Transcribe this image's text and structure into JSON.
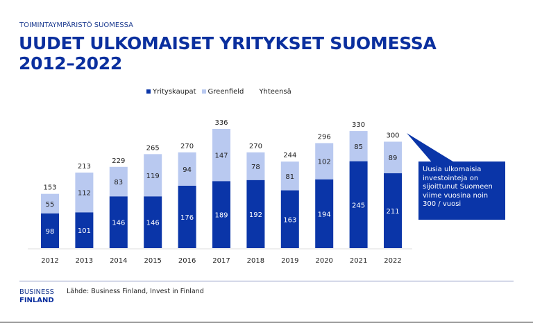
{
  "header": {
    "supertitle": "TOIMINTAYMPÄRISTÖ SUOMESSA",
    "title_line1": "UUDET ULKOMAISET YRITYKSET SUOMESSA",
    "title_line2": "2012–2022"
  },
  "colors": {
    "yrityskaupat": "#0a35a8",
    "greenfield": "#b9c9f0"
  },
  "chart_data": {
    "type": "bar",
    "stacked": true,
    "categories": [
      "2012",
      "2013",
      "2014",
      "2015",
      "2016",
      "2017",
      "2018",
      "2019",
      "2020",
      "2021",
      "2022"
    ],
    "series": [
      {
        "name": "Yrityskaupat",
        "values": [
          98,
          101,
          146,
          146,
          176,
          189,
          192,
          163,
          194,
          245,
          211
        ]
      },
      {
        "name": "Greenfield",
        "values": [
          55,
          112,
          83,
          119,
          94,
          147,
          78,
          81,
          102,
          85,
          89
        ]
      }
    ],
    "totals_name": "Yhteensä",
    "totals": [
      153,
      213,
      229,
      265,
      270,
      336,
      270,
      244,
      296,
      330,
      300
    ],
    "legend": [
      "Yrityskaupat",
      "Greenfield",
      "Yhteensä"
    ],
    "legend_position": "top",
    "grid": false,
    "ylim": [
      0,
      340
    ]
  },
  "callout": {
    "text": "Uusia ulkomaisia investointeja on sijoittunut Suomeen viime vuosina noin 300 / vuosi"
  },
  "footer": {
    "logo_line1": "BUSINESS",
    "logo_line2": "FINLAND",
    "source": "Lähde: Business Finland, Invest in Finland"
  }
}
